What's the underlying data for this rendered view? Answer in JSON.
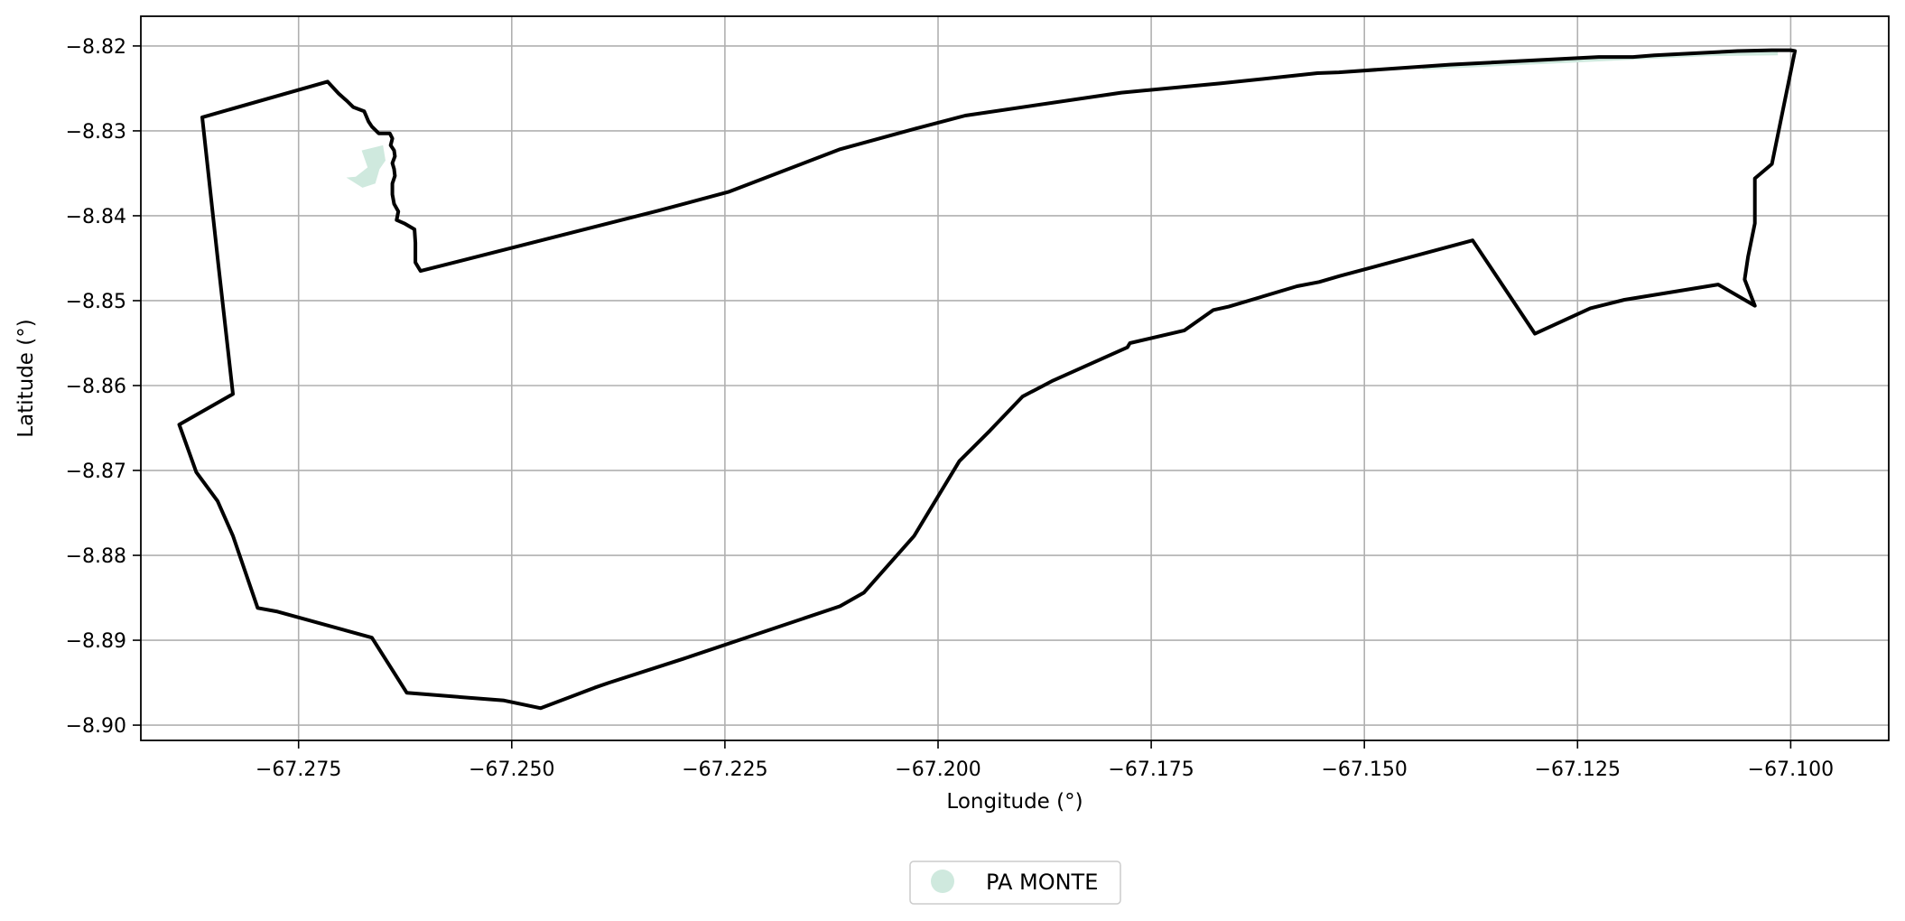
{
  "chart_data": {
    "type": "map",
    "xlabel": "Longitude (°)",
    "ylabel": "Latitude (°)",
    "xlim": [
      -67.2935,
      -67.0885
    ],
    "ylim": [
      -8.9018,
      -8.8165
    ],
    "x_ticks": [
      -67.275,
      -67.25,
      -67.225,
      -67.2,
      -67.175,
      -67.15,
      -67.125,
      -67.1
    ],
    "x_tick_labels": [
      "−67.275",
      "−67.250",
      "−67.225",
      "−67.200",
      "−67.175",
      "−67.150",
      "−67.125",
      "−67.100"
    ],
    "y_ticks": [
      -8.82,
      -8.83,
      -8.84,
      -8.85,
      -8.86,
      -8.87,
      -8.88,
      -8.89,
      -8.9
    ],
    "y_tick_labels": [
      "−8.82",
      "−8.83",
      "−8.84",
      "−8.85",
      "−8.86",
      "−8.87",
      "−8.88",
      "−8.89",
      "−8.90"
    ],
    "grid": true,
    "legend_position": "bottom-center",
    "legend": [
      {
        "label": "PA MONTE",
        "color": "#cfe9de"
      }
    ],
    "boundary": {
      "color": "#000000",
      "points": [
        [
          -67.2863,
          -8.8284
        ],
        [
          -67.2716,
          -8.8242
        ],
        [
          -67.2703,
          -8.8256
        ],
        [
          -67.2693,
          -8.8265
        ],
        [
          -67.2686,
          -8.8272
        ],
        [
          -67.2673,
          -8.8277
        ],
        [
          -67.2668,
          -8.8289
        ],
        [
          -67.2664,
          -8.8295
        ],
        [
          -67.2656,
          -8.8303
        ],
        [
          -67.2643,
          -8.8303
        ],
        [
          -67.264,
          -8.8309
        ],
        [
          -67.2642,
          -8.8317
        ],
        [
          -67.2638,
          -8.8323
        ],
        [
          -67.2637,
          -8.833
        ],
        [
          -67.264,
          -8.8338
        ],
        [
          -67.2638,
          -8.8345
        ],
        [
          -67.2637,
          -8.8353
        ],
        [
          -67.264,
          -8.8362
        ],
        [
          -67.264,
          -8.837
        ],
        [
          -67.264,
          -8.8375
        ],
        [
          -67.2638,
          -8.8386
        ],
        [
          -67.2633,
          -8.8395
        ],
        [
          -67.2635,
          -8.8405
        ],
        [
          -67.2626,
          -8.8409
        ],
        [
          -67.2614,
          -8.8416
        ],
        [
          -67.2613,
          -8.8432
        ],
        [
          -67.2613,
          -8.8455
        ],
        [
          -67.2607,
          -8.8465
        ],
        [
          -67.2328,
          -8.8394
        ],
        [
          -67.2246,
          -8.8372
        ],
        [
          -67.2116,
          -8.8322
        ],
        [
          -67.2025,
          -8.8297
        ],
        [
          -67.1968,
          -8.8282
        ],
        [
          -67.1785,
          -8.8255
        ],
        [
          -67.1668,
          -8.8244
        ],
        [
          -67.1555,
          -8.8232
        ],
        [
          -67.153,
          -8.8231
        ],
        [
          -67.14,
          -8.8222
        ],
        [
          -67.1225,
          -8.8213
        ],
        [
          -67.1185,
          -8.8213
        ],
        [
          -67.116,
          -8.8211
        ],
        [
          -67.1062,
          -8.8206
        ],
        [
          -67.1022,
          -8.8205
        ],
        [
          -67.1,
          -8.8205
        ],
        [
          -67.0995,
          -8.8206
        ],
        [
          -67.1022,
          -8.8339
        ],
        [
          -67.1042,
          -8.8356
        ],
        [
          -67.1042,
          -8.8409
        ],
        [
          -67.105,
          -8.8448
        ],
        [
          -67.1054,
          -8.8475
        ],
        [
          -67.1042,
          -8.8506
        ],
        [
          -67.1085,
          -8.8481
        ],
        [
          -67.1195,
          -8.8499
        ],
        [
          -67.1235,
          -8.8509
        ],
        [
          -67.13,
          -8.8539
        ],
        [
          -67.1373,
          -8.8429
        ],
        [
          -67.1529,
          -8.8471
        ],
        [
          -67.1553,
          -8.8478
        ],
        [
          -67.1579,
          -8.8483
        ],
        [
          -67.1659,
          -8.8507
        ],
        [
          -67.1677,
          -8.8511
        ],
        [
          -67.1711,
          -8.8535
        ],
        [
          -67.1775,
          -8.855
        ],
        [
          -67.1778,
          -8.8555
        ],
        [
          -67.1865,
          -8.8594
        ],
        [
          -67.1901,
          -8.8613
        ],
        [
          -67.1939,
          -8.8653
        ],
        [
          -67.1975,
          -8.8689
        ],
        [
          -67.2028,
          -8.8777
        ],
        [
          -67.2087,
          -8.8844
        ],
        [
          -67.2115,
          -8.886
        ],
        [
          -67.2299,
          -8.8922
        ],
        [
          -67.2386,
          -8.895
        ],
        [
          -67.2403,
          -8.8956
        ],
        [
          -67.2466,
          -8.898
        ],
        [
          -67.2509,
          -8.8971
        ],
        [
          -67.2623,
          -8.8962
        ],
        [
          -67.2664,
          -8.8897
        ],
        [
          -67.2776,
          -8.8866
        ],
        [
          -67.2798,
          -8.8862
        ],
        [
          -67.2827,
          -8.8777
        ],
        [
          -67.2845,
          -8.8736
        ],
        [
          -67.287,
          -8.8702
        ],
        [
          -67.289,
          -8.8646
        ],
        [
          -67.2827,
          -8.861
        ],
        [
          -67.2844,
          -8.8458
        ],
        [
          -67.2863,
          -8.8284
        ]
      ]
    },
    "pa_monte_area": {
      "color": "#cfe9de",
      "polygons": [
        [
          [
            -67.2676,
            -8.8323
          ],
          [
            -67.2651,
            -8.8317
          ],
          [
            -67.2648,
            -8.8335
          ],
          [
            -67.2655,
            -8.8345
          ],
          [
            -67.266,
            -8.8362
          ],
          [
            -67.2675,
            -8.8367
          ],
          [
            -67.2694,
            -8.8355
          ],
          [
            -67.2683,
            -8.8354
          ],
          [
            -67.2669,
            -8.8343
          ]
        ],
        [
          [
            -67.1432,
            -8.8228
          ],
          [
            -67.122,
            -8.8218
          ],
          [
            -67.11,
            -8.8212
          ],
          [
            -67.1015,
            -8.8211
          ],
          [
            -67.1015,
            -8.8207
          ],
          [
            -67.11,
            -8.8208
          ],
          [
            -67.122,
            -8.8214
          ],
          [
            -67.1432,
            -8.8223
          ]
        ]
      ]
    }
  }
}
